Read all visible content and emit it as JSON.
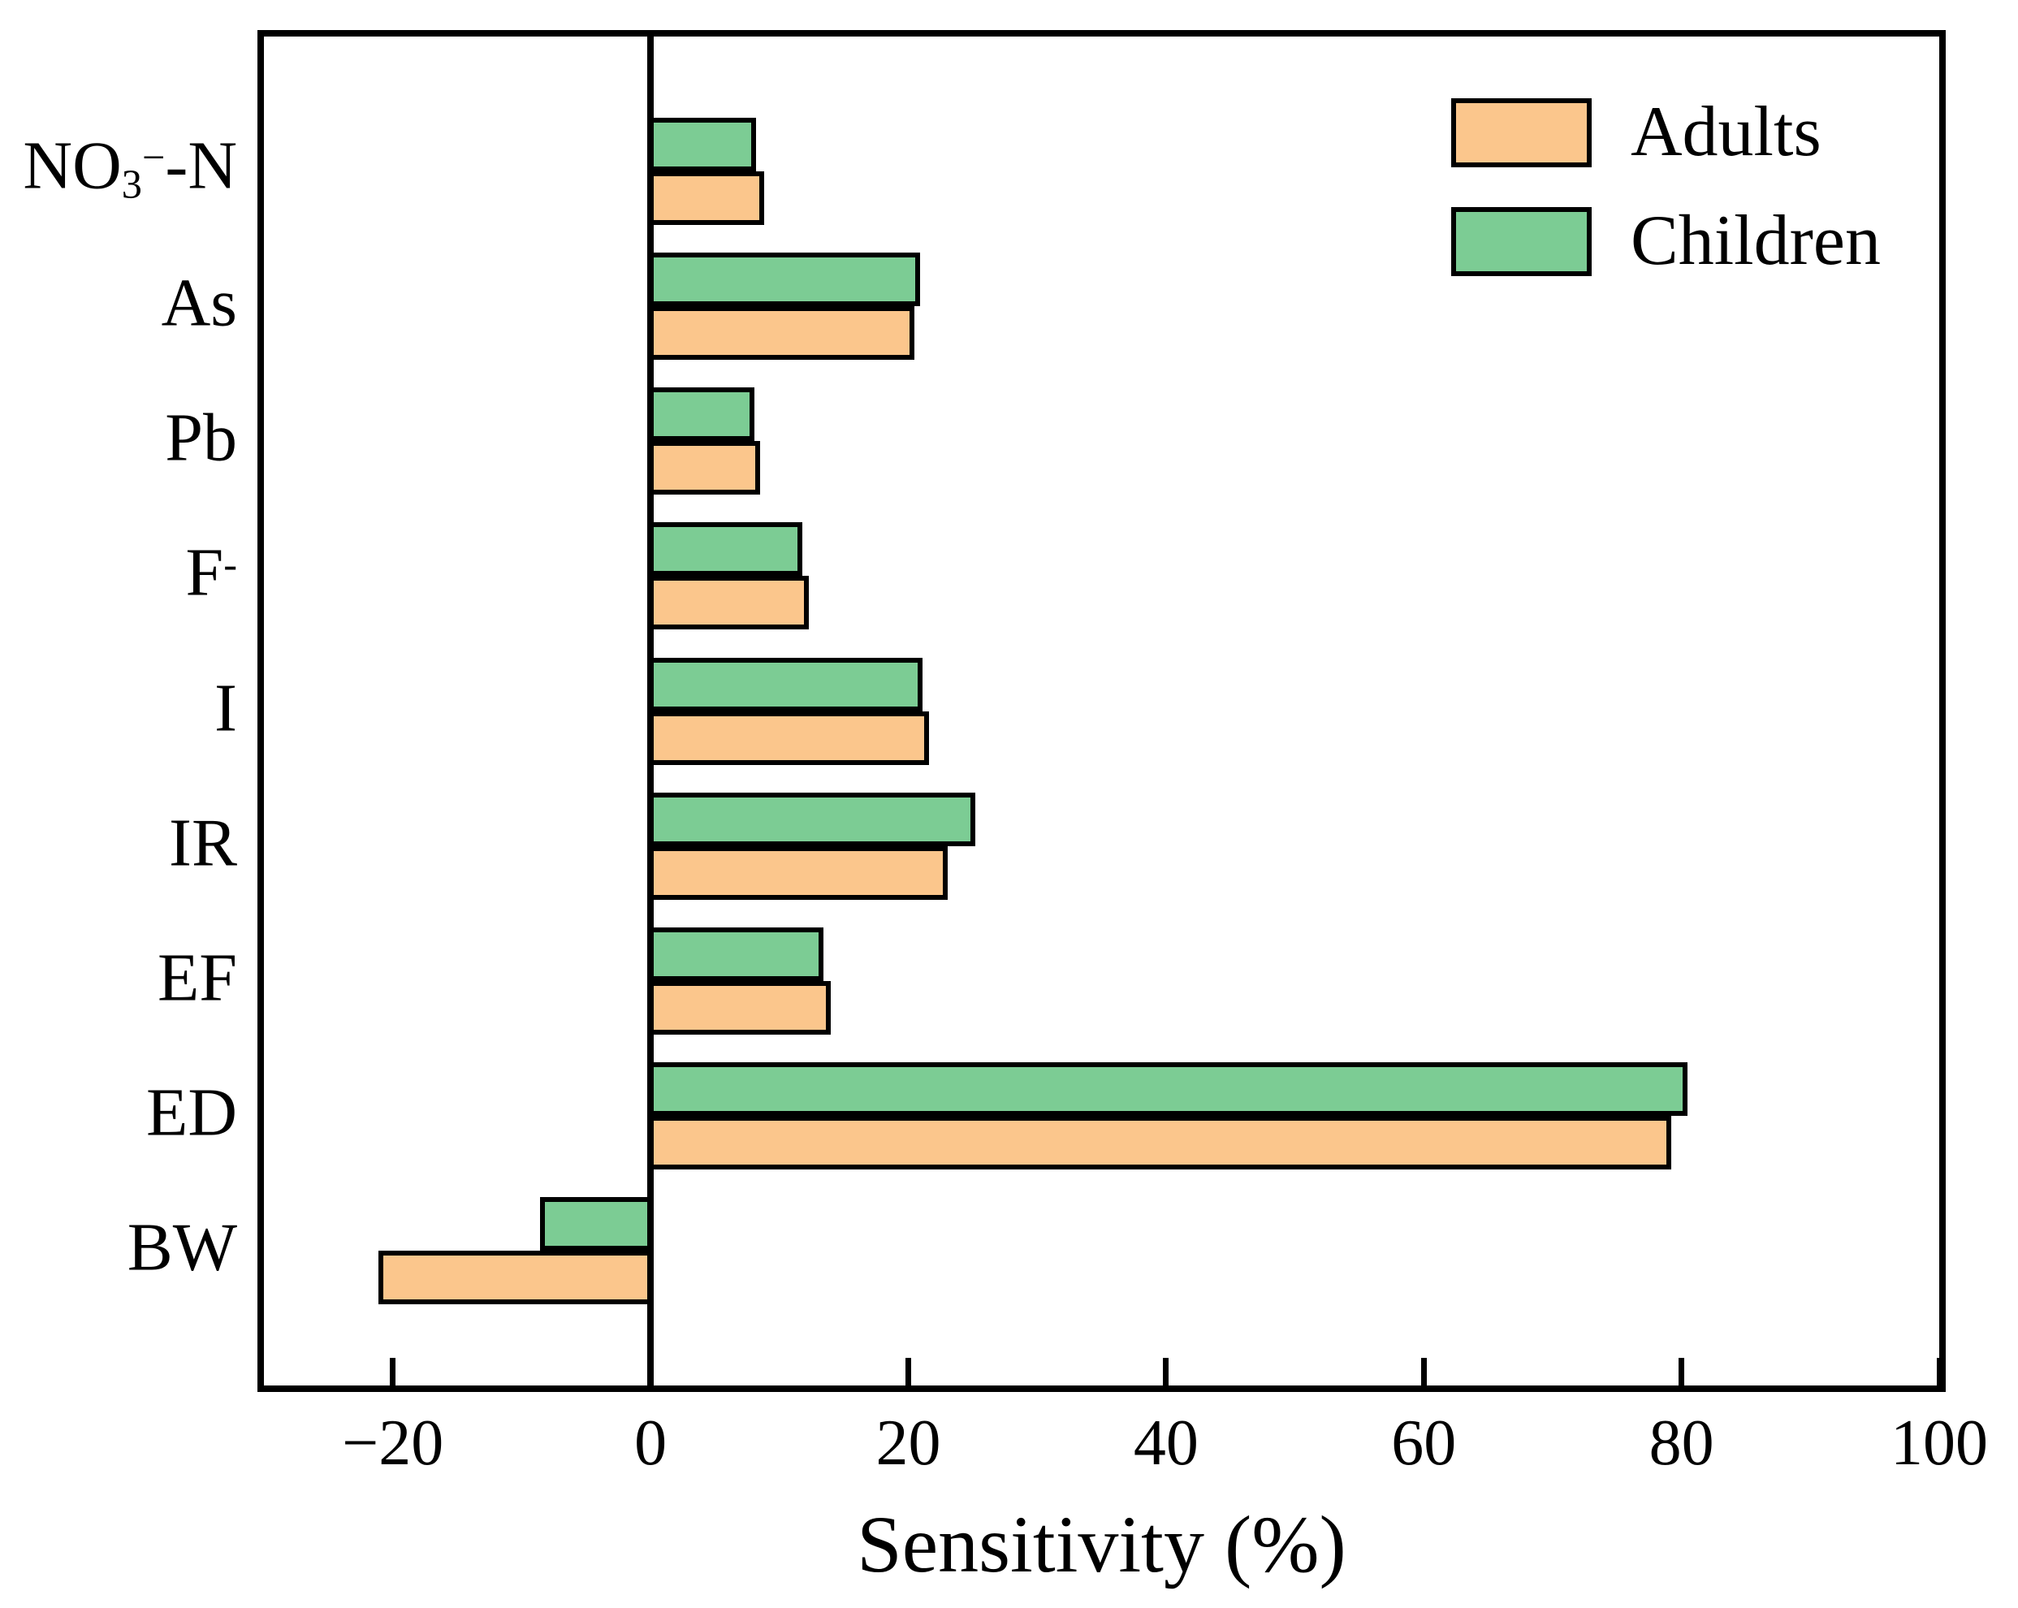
{
  "figure": {
    "background": "#ffffff",
    "plot_border_color": "#000000"
  },
  "chart_data": {
    "type": "bar",
    "orientation": "horizontal",
    "title": "",
    "xlabel": "Sensitivity (%)",
    "ylabel": "",
    "xlim": [
      -30,
      100
    ],
    "xticks": [
      -20,
      0,
      20,
      40,
      60,
      80,
      100
    ],
    "xtick_labels": [
      "−20",
      "0",
      "20",
      "40",
      "60",
      "80",
      "100"
    ],
    "grid": false,
    "legend_position": "top-right",
    "bar_edge_color": "#000000",
    "categories": [
      "NO3−-N",
      "As",
      "Pb",
      "F-",
      "I",
      "IR",
      "EF",
      "ED",
      "BW"
    ],
    "category_label_segments": [
      [
        {
          "t": "NO"
        },
        {
          "t": "3",
          "pos": "sub"
        },
        {
          "t": "−",
          "pos": "sup"
        },
        {
          "t": "-N"
        }
      ],
      [
        {
          "t": "As"
        }
      ],
      [
        {
          "t": "Pb"
        }
      ],
      [
        {
          "t": "F"
        },
        {
          "t": "-",
          "pos": "sup"
        }
      ],
      [
        {
          "t": "I"
        }
      ],
      [
        {
          "t": "IR"
        }
      ],
      [
        {
          "t": "EF"
        }
      ],
      [
        {
          "t": "ED"
        }
      ],
      [
        {
          "t": "BW"
        }
      ]
    ],
    "series": [
      {
        "name": "Adults",
        "color": "#fbc68c",
        "values": [
          8.6,
          20.3,
          8.3,
          12.1,
          21.4,
          22.9,
          13.8,
          79.0,
          -20.9
        ]
      },
      {
        "name": "Children",
        "color": "#7ccc94",
        "values": [
          8.0,
          20.7,
          7.9,
          11.6,
          20.9,
          25.0,
          13.2,
          80.3,
          -8.4
        ]
      }
    ],
    "group_draw_order": [
      "Children",
      "Adults"
    ]
  }
}
